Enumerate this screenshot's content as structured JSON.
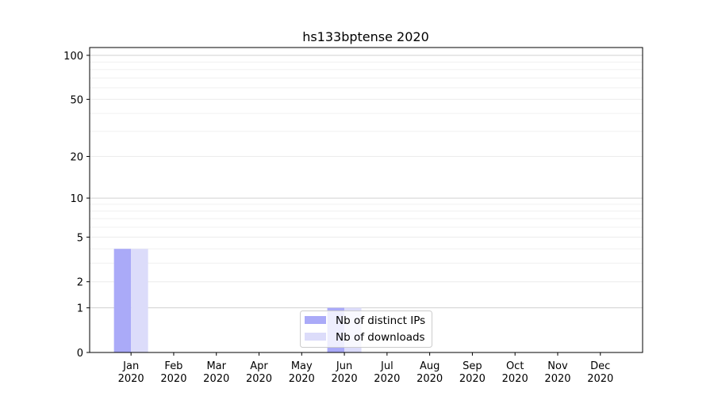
{
  "chart_data": {
    "type": "bar",
    "title": "hs133bptense 2020",
    "categories": [
      "Jan\n2020",
      "Feb\n2020",
      "Mar\n2020",
      "Apr\n2020",
      "May\n2020",
      "Jun\n2020",
      "Jul\n2020",
      "Aug\n2020",
      "Sep\n2020",
      "Oct\n2020",
      "Nov\n2020",
      "Dec\n2020"
    ],
    "series": [
      {
        "name": "Nb of distinct IPs",
        "color": "#aaaaf8",
        "values": [
          4,
          0,
          0,
          0,
          0,
          1,
          0,
          0,
          0,
          0,
          0,
          0
        ]
      },
      {
        "name": "Nb of downloads",
        "color": "#dcdcfa",
        "values": [
          4,
          0,
          0,
          0,
          0,
          1,
          0,
          0,
          0,
          0,
          0,
          0
        ]
      }
    ],
    "yscale": "log(1+y)",
    "yticks": [
      0,
      1,
      2,
      5,
      10,
      20,
      50,
      100
    ],
    "ylim": [
      0,
      113
    ],
    "grid": true,
    "legend": "lower-center"
  }
}
